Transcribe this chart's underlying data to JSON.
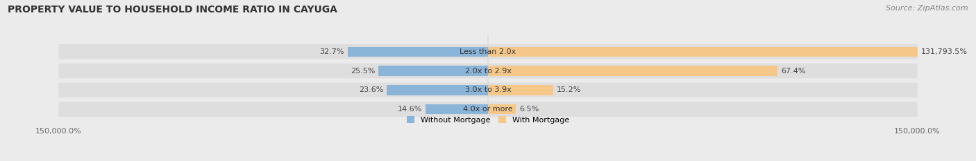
{
  "title": "PROPERTY VALUE TO HOUSEHOLD INCOME RATIO IN CAYUGA",
  "source": "Source: ZipAtlas.com",
  "categories": [
    "Less than 2.0x",
    "2.0x to 2.9x",
    "3.0x to 3.9x",
    "4.0x or more"
  ],
  "without_mortgage": [
    32.7,
    25.5,
    23.6,
    14.6
  ],
  "with_mortgage": [
    131793.5,
    67.4,
    15.2,
    6.5
  ],
  "without_mortgage_color": "#8ab4d8",
  "with_mortgage_color": "#f5c88a",
  "background_color": "#ebebeb",
  "bar_bg_color": "#dedede",
  "xlim": 150000,
  "xlabel_left": "150,000.0%",
  "xlabel_right": "150,000.0%",
  "legend_labels": [
    "Without Mortgage",
    "With Mortgage"
  ],
  "title_fontsize": 10,
  "source_fontsize": 8,
  "label_fontsize": 8,
  "axis_fontsize": 8
}
